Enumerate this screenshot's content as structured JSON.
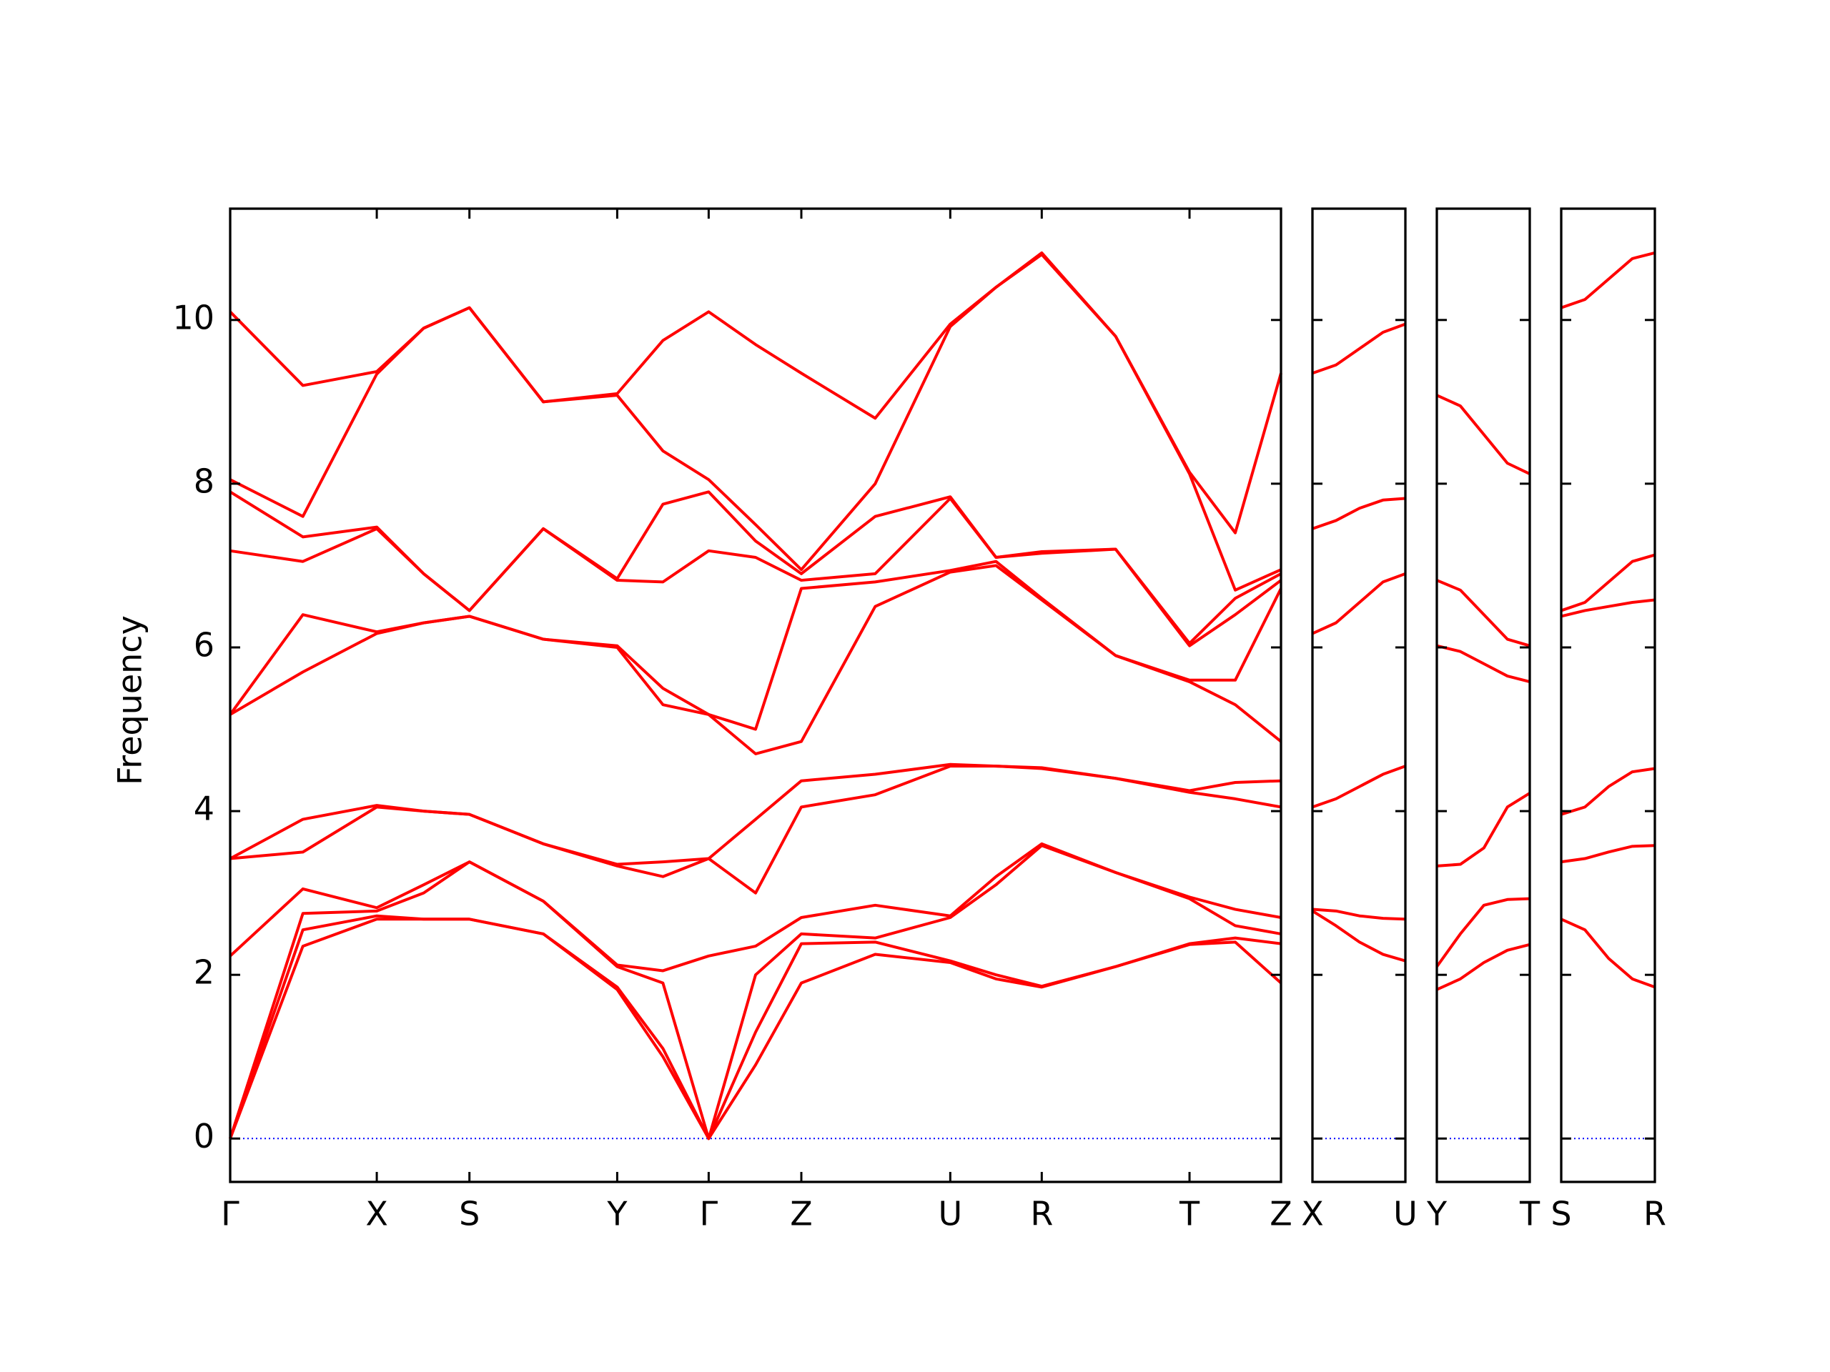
{
  "chart_data": [
    {
      "type": "line",
      "ylabel": "Frequency",
      "ytick_labels": true,
      "ylim": [
        -0.53,
        11.36
      ],
      "yticks": [
        0,
        2,
        4,
        6,
        8,
        10
      ],
      "xlim": [
        0,
        8.96
      ],
      "xticks": [
        {
          "value": 0,
          "label": "Γ"
        },
        {
          "value": 1.25,
          "label": "X"
        },
        {
          "value": 2.04,
          "label": "S"
        },
        {
          "value": 3.3,
          "label": "Y"
        },
        {
          "value": 4.08,
          "label": "Γ"
        },
        {
          "value": 4.87,
          "label": "Z"
        },
        {
          "value": 6.14,
          "label": "U"
        },
        {
          "value": 6.92,
          "label": "R"
        },
        {
          "value": 8.18,
          "label": "T"
        },
        {
          "value": 8.96,
          "label": "Z"
        }
      ],
      "hline": 0,
      "hline_color": "#0000ff",
      "x": [
        0,
        0.62,
        1.25,
        1.65,
        2.04,
        2.67,
        3.3,
        3.69,
        4.08,
        4.48,
        4.87,
        5.5,
        6.14,
        6.53,
        6.92,
        7.55,
        8.18,
        8.57,
        8.96
      ],
      "series": [
        {
          "color": "#ff0000",
          "values": [
            0,
            2.35,
            2.68,
            2.68,
            2.68,
            2.5,
            1.82,
            1.0,
            0,
            0.9,
            1.9,
            2.25,
            2.15,
            1.95,
            1.85,
            2.1,
            2.37,
            2.4,
            1.9
          ]
        },
        {
          "color": "#ff0000",
          "values": [
            0,
            2.55,
            2.72,
            2.68,
            2.68,
            2.5,
            1.85,
            1.1,
            0,
            1.3,
            2.38,
            2.4,
            2.17,
            2.0,
            1.86,
            2.1,
            2.38,
            2.45,
            2.38
          ]
        },
        {
          "color": "#ff0000",
          "values": [
            0,
            2.75,
            2.78,
            3.0,
            3.38,
            2.9,
            2.1,
            1.9,
            0,
            2.0,
            2.5,
            2.45,
            2.7,
            3.1,
            3.58,
            3.25,
            2.93,
            2.6,
            2.5
          ]
        },
        {
          "color": "#ff0000",
          "values": [
            2.23,
            3.05,
            2.82,
            3.1,
            3.38,
            2.9,
            2.12,
            2.05,
            2.23,
            2.35,
            2.7,
            2.85,
            2.72,
            3.2,
            3.6,
            3.25,
            2.95,
            2.8,
            2.7
          ]
        },
        {
          "color": "#ff0000",
          "values": [
            3.42,
            3.5,
            4.05,
            4.0,
            3.96,
            3.6,
            3.33,
            3.2,
            3.42,
            3.0,
            4.05,
            4.2,
            4.55,
            4.55,
            4.52,
            4.4,
            4.23,
            4.15,
            4.05
          ]
        },
        {
          "color": "#ff0000",
          "values": [
            3.42,
            3.9,
            4.07,
            4.0,
            3.96,
            3.6,
            3.35,
            3.38,
            3.42,
            3.9,
            4.37,
            4.45,
            4.57,
            4.55,
            4.53,
            4.4,
            4.25,
            4.35,
            4.37
          ]
        },
        {
          "color": "#ff0000",
          "values": [
            5.18,
            5.7,
            6.17,
            6.3,
            6.38,
            6.1,
            6.0,
            5.3,
            5.18,
            4.7,
            4.85,
            6.5,
            6.92,
            7.0,
            6.58,
            5.9,
            5.58,
            5.3,
            4.85
          ]
        },
        {
          "color": "#ff0000",
          "values": [
            5.18,
            6.4,
            6.19,
            6.3,
            6.38,
            6.1,
            6.02,
            5.5,
            5.18,
            5.0,
            6.72,
            6.8,
            6.94,
            7.05,
            6.6,
            5.9,
            5.6,
            5.6,
            6.72
          ]
        },
        {
          "color": "#ff0000",
          "values": [
            7.18,
            7.05,
            7.45,
            6.9,
            6.45,
            7.45,
            6.82,
            6.8,
            7.18,
            7.1,
            6.82,
            6.9,
            7.82,
            7.1,
            7.15,
            7.2,
            6.02,
            6.4,
            6.82
          ]
        },
        {
          "color": "#ff0000",
          "values": [
            7.9,
            7.35,
            7.47,
            6.9,
            6.45,
            7.45,
            6.84,
            7.75,
            7.9,
            7.3,
            6.9,
            7.6,
            7.84,
            7.1,
            7.17,
            7.2,
            6.05,
            6.6,
            6.9
          ]
        },
        {
          "color": "#ff0000",
          "values": [
            8.05,
            7.6,
            9.34,
            9.9,
            10.15,
            9.0,
            9.08,
            8.4,
            8.05,
            7.5,
            6.95,
            8.0,
            9.92,
            10.4,
            10.8,
            9.8,
            8.12,
            6.7,
            6.95
          ]
        },
        {
          "color": "#ff0000",
          "values": [
            10.1,
            9.2,
            9.37,
            9.9,
            10.15,
            9.0,
            9.1,
            9.75,
            10.1,
            9.7,
            9.35,
            8.8,
            9.95,
            10.4,
            10.82,
            9.8,
            8.14,
            7.4,
            9.35
          ]
        }
      ]
    },
    {
      "type": "line",
      "ytick_labels": false,
      "ylim": [
        -0.53,
        11.36
      ],
      "yticks": [
        0,
        2,
        4,
        6,
        8,
        10
      ],
      "xlim": [
        0,
        0.79
      ],
      "xticks": [
        {
          "value": 0,
          "label": "X"
        },
        {
          "value": 0.79,
          "label": "U"
        }
      ],
      "hline": 0,
      "hline_color": "#0000ff",
      "x": [
        0,
        0.2,
        0.4,
        0.6,
        0.79
      ],
      "series": [
        {
          "color": "#ff0000",
          "values": [
            2.8,
            2.78,
            2.72,
            2.69,
            2.68
          ]
        },
        {
          "color": "#ff0000",
          "values": [
            2.78,
            2.6,
            2.4,
            2.25,
            2.17
          ]
        },
        {
          "color": "#ff0000",
          "values": [
            4.05,
            4.15,
            4.3,
            4.45,
            4.55
          ]
        },
        {
          "color": "#ff0000",
          "values": [
            6.17,
            6.3,
            6.55,
            6.8,
            6.9
          ]
        },
        {
          "color": "#ff0000",
          "values": [
            7.45,
            7.55,
            7.7,
            7.8,
            7.82
          ]
        },
        {
          "color": "#ff0000",
          "values": [
            9.35,
            9.45,
            9.65,
            9.85,
            9.95
          ]
        }
      ]
    },
    {
      "type": "line",
      "ytick_labels": false,
      "ylim": [
        -0.53,
        11.36
      ],
      "yticks": [
        0,
        2,
        4,
        6,
        8,
        10
      ],
      "xlim": [
        0,
        0.79
      ],
      "xticks": [
        {
          "value": 0,
          "label": "Y"
        },
        {
          "value": 0.79,
          "label": "T"
        }
      ],
      "hline": 0,
      "hline_color": "#0000ff",
      "x": [
        0,
        0.2,
        0.4,
        0.6,
        0.79
      ],
      "series": [
        {
          "color": "#ff0000",
          "values": [
            1.82,
            1.95,
            2.15,
            2.3,
            2.37
          ]
        },
        {
          "color": "#ff0000",
          "values": [
            2.1,
            2.5,
            2.85,
            2.92,
            2.93
          ]
        },
        {
          "color": "#ff0000",
          "values": [
            3.33,
            3.35,
            3.55,
            4.05,
            4.22
          ]
        },
        {
          "color": "#ff0000",
          "values": [
            6.02,
            5.95,
            5.8,
            5.65,
            5.58
          ]
        },
        {
          "color": "#ff0000",
          "values": [
            6.82,
            6.7,
            6.4,
            6.1,
            6.02
          ]
        },
        {
          "color": "#ff0000",
          "values": [
            9.08,
            8.95,
            8.6,
            8.25,
            8.12
          ]
        }
      ]
    },
    {
      "type": "line",
      "ytick_labels": false,
      "ylim": [
        -0.53,
        11.36
      ],
      "yticks": [
        0,
        2,
        4,
        6,
        8,
        10
      ],
      "xlim": [
        0,
        0.79
      ],
      "xticks": [
        {
          "value": 0,
          "label": "S"
        },
        {
          "value": 0.79,
          "label": "R"
        }
      ],
      "hline": 0,
      "hline_color": "#0000ff",
      "x": [
        0,
        0.2,
        0.4,
        0.6,
        0.79
      ],
      "series": [
        {
          "color": "#ff0000",
          "values": [
            2.68,
            2.55,
            2.2,
            1.95,
            1.85
          ]
        },
        {
          "color": "#ff0000",
          "values": [
            3.38,
            3.42,
            3.5,
            3.57,
            3.58
          ]
        },
        {
          "color": "#ff0000",
          "values": [
            3.96,
            4.05,
            4.3,
            4.48,
            4.52
          ]
        },
        {
          "color": "#ff0000",
          "values": [
            6.38,
            6.45,
            6.5,
            6.55,
            6.58
          ]
        },
        {
          "color": "#ff0000",
          "values": [
            6.45,
            6.55,
            6.8,
            7.05,
            7.13
          ]
        },
        {
          "color": "#ff0000",
          "values": [
            10.15,
            10.25,
            10.5,
            10.75,
            10.82
          ]
        }
      ]
    }
  ]
}
